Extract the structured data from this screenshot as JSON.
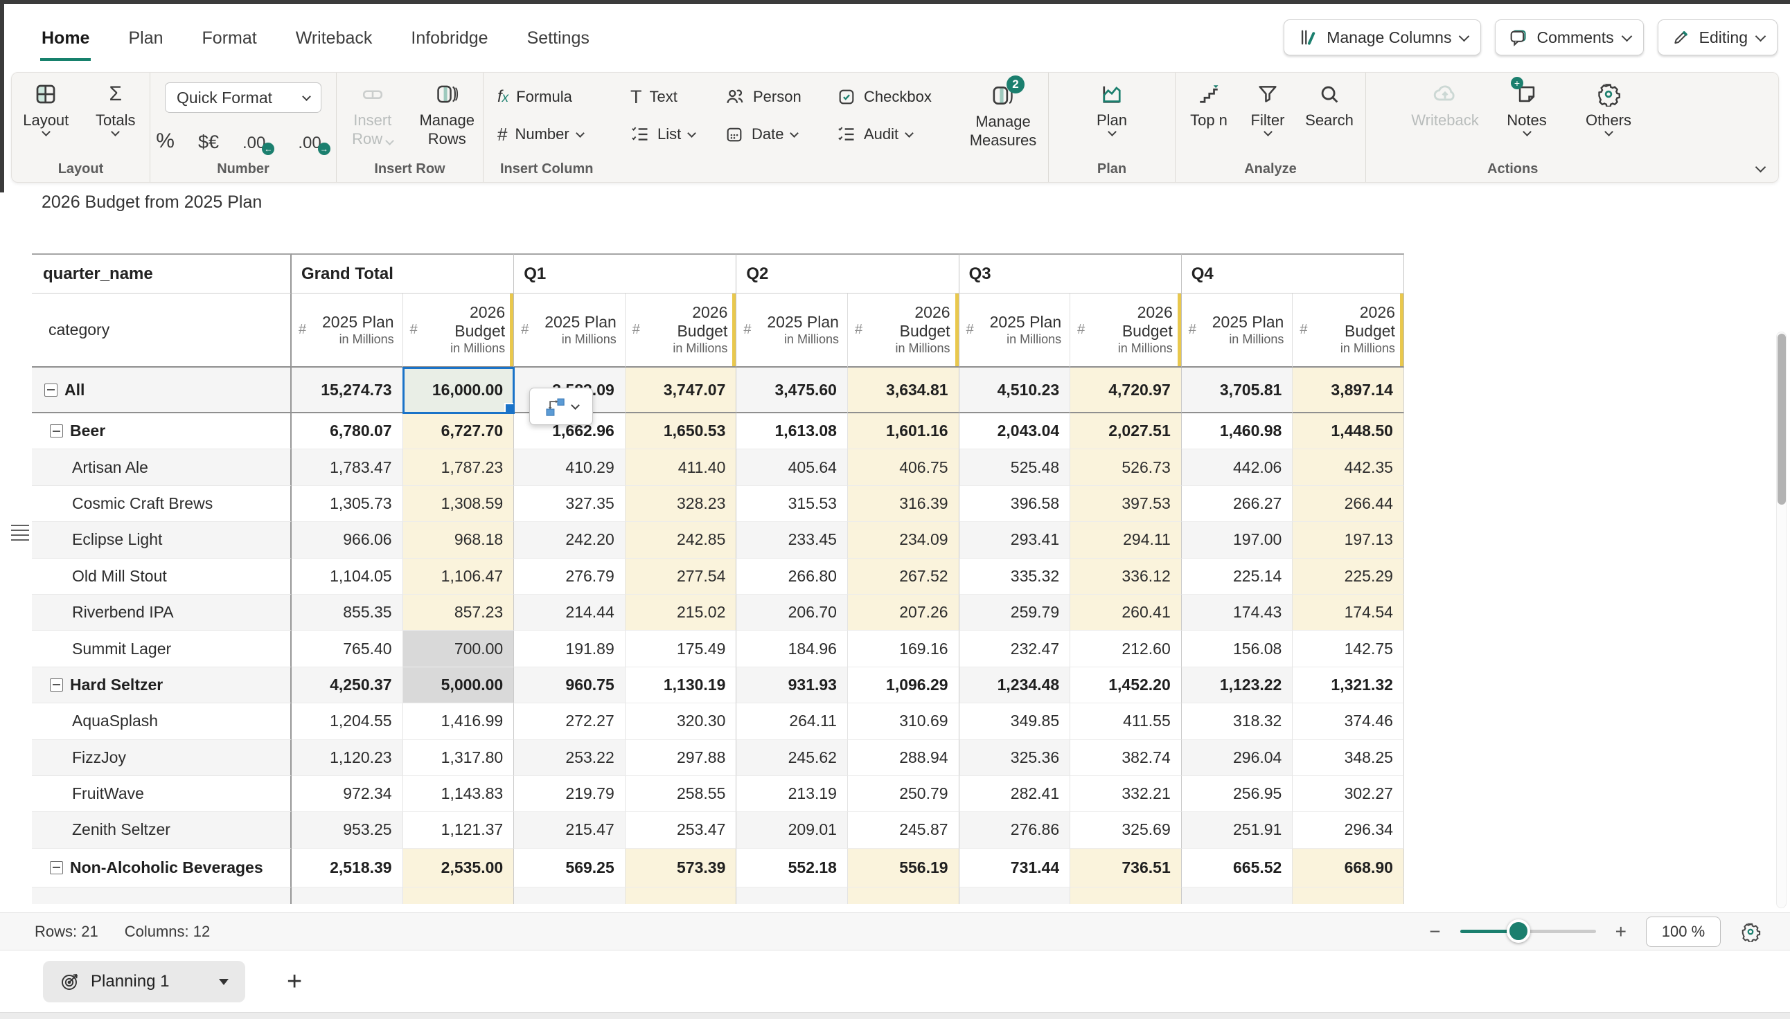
{
  "menu": {
    "tabs": [
      "Home",
      "Plan",
      "Format",
      "Writeback",
      "Infobridge",
      "Settings"
    ],
    "active_tab": "Home",
    "manage_columns": "Manage Columns",
    "comments": "Comments",
    "editing": "Editing"
  },
  "glyphs": {
    "sigma": "Σ",
    "percent": "%",
    "currency": "$€",
    "decimal": ".00",
    "arrow_left": "←",
    "arrow_right": "→",
    "hash": "#",
    "t": "T",
    "fx_f": "f",
    "fx_x": "x",
    "minus": "−",
    "plus": "+"
  },
  "ribbon": {
    "captions": [
      "Layout",
      "Number",
      "Insert Row",
      "Insert Column",
      "Plan",
      "Analyze",
      "Actions"
    ],
    "layout": "Layout",
    "totals": "Totals",
    "quick_format": "Quick Format",
    "insert_row": "Insert Row",
    "manage_rows": "Manage Rows",
    "formula": "Formula",
    "text": "Text",
    "person": "Person",
    "checkbox": "Checkbox",
    "number": "Number",
    "list": "List",
    "date": "Date",
    "audit": "Audit",
    "manage_measures": "Manage Measures",
    "manage_measures_badge": "2",
    "plan": "Plan",
    "top_n": "Top n",
    "filter": "Filter",
    "search": "Search",
    "writeback": "Writeback",
    "notes": "Notes",
    "others": "Others"
  },
  "sheet": {
    "title": "2026 Budget from 2025 Plan",
    "row_dim": "quarter_name",
    "col_dim": "category",
    "groups": [
      "Grand Total",
      "Q1",
      "Q2",
      "Q3",
      "Q4"
    ],
    "plan_header": {
      "lines": [
        "2025 Plan"
      ],
      "sub": "in Millions"
    },
    "budget_header": {
      "lines": [
        "2026",
        "Budget"
      ],
      "sub": "in Millions"
    },
    "rows": [
      {
        "label": "All",
        "indent": 0,
        "bold": true,
        "collapse": true,
        "values": [
          "15,274.73",
          "16,000.00",
          "3,583.09",
          "3,747.07",
          "3,475.60",
          "3,634.81",
          "4,510.23",
          "4,720.97",
          "3,705.81",
          "3,897.14"
        ],
        "styles": [
          "p",
          "sel",
          "p",
          "b",
          "p",
          "b",
          "p",
          "b",
          "p",
          "b"
        ]
      },
      {
        "label": "Beer",
        "indent": 1,
        "bold": true,
        "collapse": true,
        "values": [
          "6,780.07",
          "6,727.70",
          "1,662.96",
          "1,650.53",
          "1,613.08",
          "1,601.16",
          "2,043.04",
          "2,027.51",
          "1,460.98",
          "1,448.50"
        ],
        "styles": [
          "p",
          "b",
          "p",
          "b",
          "p",
          "b",
          "p",
          "b",
          "p",
          "b"
        ]
      },
      {
        "label": "Artisan Ale",
        "indent": 2,
        "bold": false,
        "collapse": false,
        "values": [
          "1,783.47",
          "1,787.23",
          "410.29",
          "411.40",
          "405.64",
          "406.75",
          "525.48",
          "526.73",
          "442.06",
          "442.35"
        ],
        "styles": [
          "p",
          "b",
          "p",
          "b",
          "p",
          "b",
          "p",
          "b",
          "p",
          "b"
        ]
      },
      {
        "label": "Cosmic Craft Brews",
        "indent": 2,
        "bold": false,
        "collapse": false,
        "values": [
          "1,305.73",
          "1,308.59",
          "327.35",
          "328.23",
          "315.53",
          "316.39",
          "396.58",
          "397.53",
          "266.27",
          "266.44"
        ],
        "styles": [
          "p",
          "b",
          "p",
          "b",
          "p",
          "b",
          "p",
          "b",
          "p",
          "b"
        ]
      },
      {
        "label": "Eclipse Light",
        "indent": 2,
        "bold": false,
        "collapse": false,
        "values": [
          "966.06",
          "968.18",
          "242.20",
          "242.85",
          "233.45",
          "234.09",
          "293.41",
          "294.11",
          "197.00",
          "197.13"
        ],
        "styles": [
          "p",
          "b",
          "p",
          "b",
          "p",
          "b",
          "p",
          "b",
          "p",
          "b"
        ]
      },
      {
        "label": "Old Mill Stout",
        "indent": 2,
        "bold": false,
        "collapse": false,
        "values": [
          "1,104.05",
          "1,106.47",
          "276.79",
          "277.54",
          "266.80",
          "267.52",
          "335.32",
          "336.12",
          "225.14",
          "225.29"
        ],
        "styles": [
          "p",
          "b",
          "p",
          "b",
          "p",
          "b",
          "p",
          "b",
          "p",
          "b"
        ]
      },
      {
        "label": "Riverbend IPA",
        "indent": 2,
        "bold": false,
        "collapse": false,
        "values": [
          "855.35",
          "857.23",
          "214.44",
          "215.02",
          "206.70",
          "207.26",
          "259.79",
          "260.41",
          "174.43",
          "174.54"
        ],
        "styles": [
          "p",
          "b",
          "p",
          "b",
          "p",
          "b",
          "p",
          "b",
          "p",
          "b"
        ]
      },
      {
        "label": "Summit Lager",
        "indent": 2,
        "bold": false,
        "collapse": false,
        "values": [
          "765.40",
          "700.00",
          "191.89",
          "175.49",
          "184.96",
          "169.16",
          "232.47",
          "212.60",
          "156.08",
          "142.75"
        ],
        "styles": [
          "p",
          "g",
          "p",
          "w",
          "p",
          "w",
          "p",
          "w",
          "p",
          "w"
        ]
      },
      {
        "label": "Hard Seltzer",
        "indent": 1,
        "bold": true,
        "collapse": true,
        "values": [
          "4,250.37",
          "5,000.00",
          "960.75",
          "1,130.19",
          "931.93",
          "1,096.29",
          "1,234.48",
          "1,452.20",
          "1,123.22",
          "1,321.32"
        ],
        "styles": [
          "p",
          "g",
          "p",
          "w",
          "p",
          "w",
          "p",
          "w",
          "p",
          "w"
        ]
      },
      {
        "label": "AquaSplash",
        "indent": 2,
        "bold": false,
        "collapse": false,
        "values": [
          "1,204.55",
          "1,416.99",
          "272.27",
          "320.30",
          "264.11",
          "310.69",
          "349.85",
          "411.55",
          "318.32",
          "374.46"
        ],
        "styles": [
          "p",
          "w",
          "p",
          "w",
          "p",
          "w",
          "p",
          "w",
          "p",
          "w"
        ]
      },
      {
        "label": "FizzJoy",
        "indent": 2,
        "bold": false,
        "collapse": false,
        "values": [
          "1,120.23",
          "1,317.80",
          "253.22",
          "297.88",
          "245.62",
          "288.94",
          "325.36",
          "382.74",
          "296.04",
          "348.25"
        ],
        "styles": [
          "p",
          "w",
          "p",
          "w",
          "p",
          "w",
          "p",
          "w",
          "p",
          "w"
        ]
      },
      {
        "label": "FruitWave",
        "indent": 2,
        "bold": false,
        "collapse": false,
        "values": [
          "972.34",
          "1,143.83",
          "219.79",
          "258.55",
          "213.19",
          "250.79",
          "282.41",
          "332.21",
          "256.95",
          "302.27"
        ],
        "styles": [
          "p",
          "w",
          "p",
          "w",
          "p",
          "w",
          "p",
          "w",
          "p",
          "w"
        ]
      },
      {
        "label": "Zenith Seltzer",
        "indent": 2,
        "bold": false,
        "collapse": false,
        "values": [
          "953.25",
          "1,121.37",
          "215.47",
          "253.47",
          "209.01",
          "245.87",
          "276.86",
          "325.69",
          "251.91",
          "296.34"
        ],
        "styles": [
          "p",
          "w",
          "p",
          "w",
          "p",
          "w",
          "p",
          "w",
          "p",
          "w"
        ]
      },
      {
        "label": "Non-Alcoholic Beverages",
        "indent": 1,
        "bold": true,
        "collapse": true,
        "values": [
          "2,518.39",
          "2,535.00",
          "569.25",
          "573.39",
          "552.18",
          "556.19",
          "731.44",
          "736.51",
          "665.52",
          "668.90"
        ],
        "styles": [
          "p",
          "b",
          "p",
          "b",
          "p",
          "b",
          "p",
          "b",
          "p",
          "b"
        ]
      }
    ]
  },
  "status_bar": {
    "rows": "Rows: 21",
    "columns": "Columns: 12",
    "zoom": "100 %"
  },
  "tab_bar": {
    "tab": "Planning 1"
  }
}
